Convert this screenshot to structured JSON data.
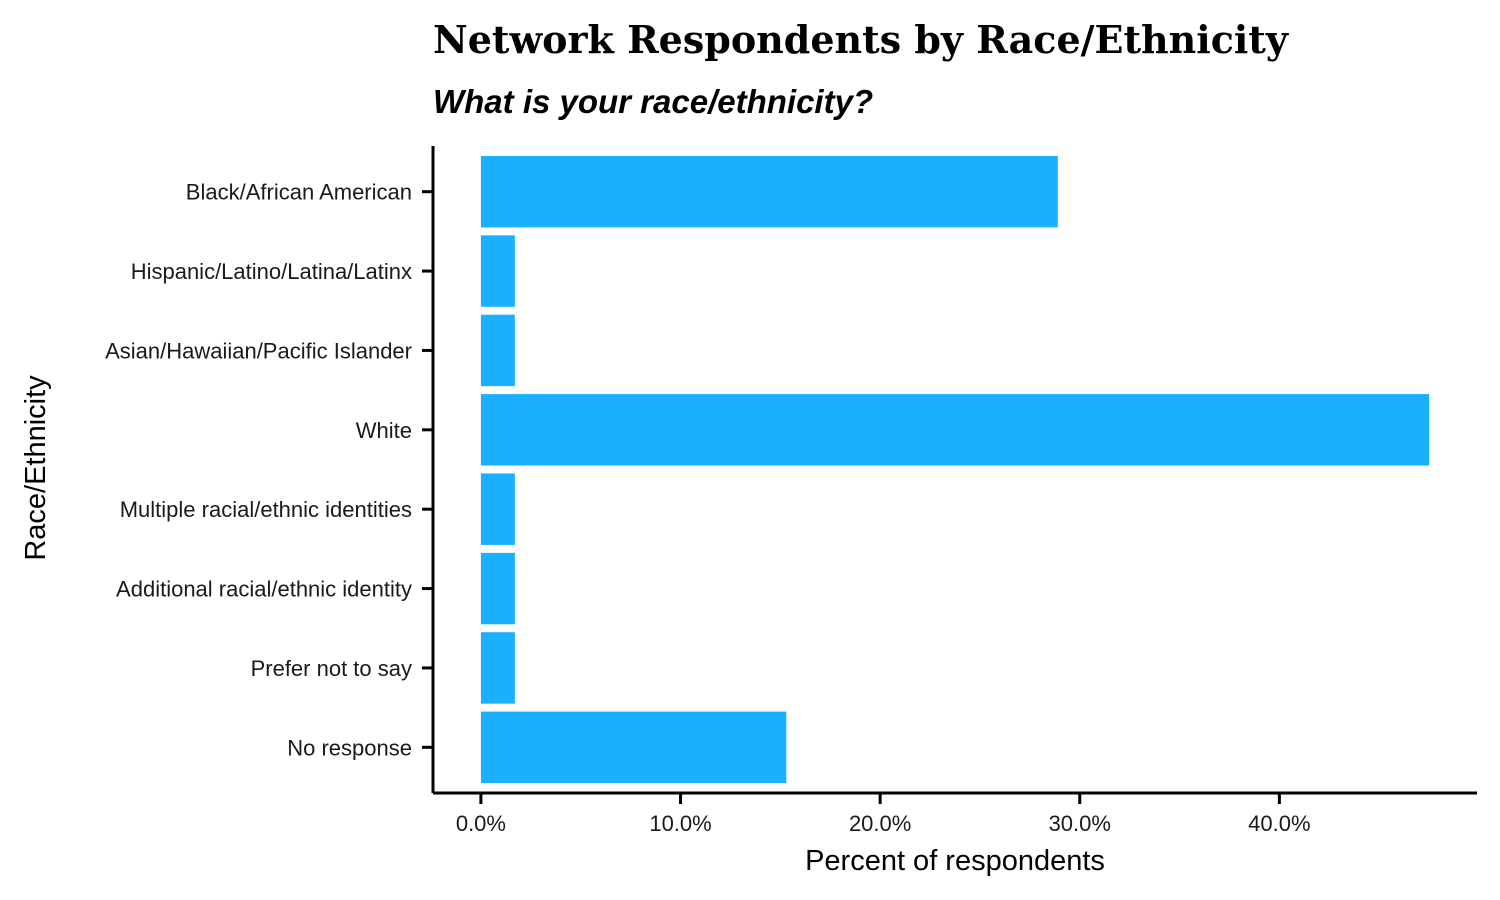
{
  "chart_data": {
    "type": "bar",
    "orientation": "horizontal",
    "title": "Network Respondents by Race/Ethnicity",
    "subtitle": "What is your race/ethnicity?",
    "xlabel": "Percent of respondents",
    "ylabel": "Race/Ethnicity",
    "categories": [
      "Black/African American",
      "Hispanic/Latino/Latina/Latinx",
      "Asian/Hawaiian/Pacific Islander",
      "White",
      "Multiple racial/ethnic identities",
      "Additional racial/ethnic identity",
      "Prefer not to say",
      "No response"
    ],
    "values": [
      28.9,
      1.7,
      1.7,
      47.5,
      1.7,
      1.7,
      1.7,
      15.3
    ],
    "xlim": [
      -2.4,
      49.9
    ],
    "xticks": [
      0,
      10,
      20,
      30,
      40
    ],
    "xtick_labels": [
      "0.0%",
      "10.0%",
      "20.0%",
      "30.0%",
      "40.0%"
    ],
    "grid": false,
    "bar_color": "#1AAFFF"
  }
}
